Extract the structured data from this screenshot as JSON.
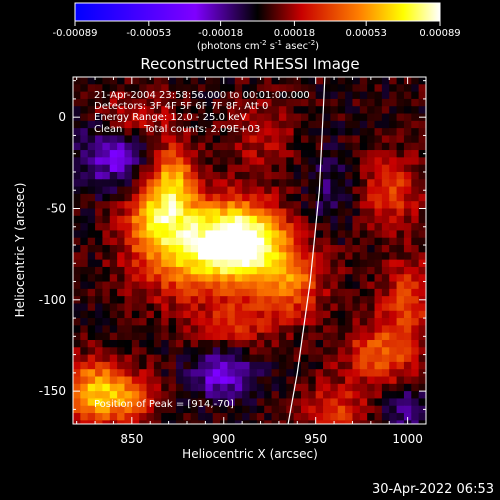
{
  "chart_data": {
    "type": "heatmap",
    "title": "Reconstructed RHESSI Image",
    "xlabel": "Heliocentric X (arcsec)",
    "ylabel": "Heliocentric Y (arcsec)",
    "xlim": [
      818,
      1010
    ],
    "ylim": [
      -168,
      22
    ],
    "xticks": [
      850,
      900,
      950,
      1000
    ],
    "yticks": [
      0,
      -50,
      -100,
      -150
    ],
    "colorbar": {
      "min": -0.00089,
      "max": 0.00089,
      "ticks": [
        "-0.00089",
        "-0.00053",
        "-0.00018",
        "0.00018",
        "0.00053",
        "0.00089"
      ],
      "unit_label": "(photons cm",
      "unit_exp1": "-2",
      "unit_mid1": " s",
      "unit_exp2": "-1",
      "unit_mid2": " asec",
      "unit_exp3": "-2",
      "unit_end": ")"
    },
    "peak": {
      "x": 914,
      "y": -70
    },
    "limb_points": [
      [
        955,
        22
      ],
      [
        952,
        -40
      ],
      [
        947,
        -90
      ],
      [
        940,
        -140
      ],
      [
        935,
        -168
      ]
    ],
    "sources": [
      {
        "x": 910,
        "y": -68,
        "amp": 0.00089,
        "sx": 16,
        "sy": 14
      },
      {
        "x": 880,
        "y": -72,
        "amp": 0.00055,
        "sx": 20,
        "sy": 18
      },
      {
        "x": 935,
        "y": -90,
        "amp": 0.0004,
        "sx": 14,
        "sy": 14
      },
      {
        "x": 872,
        "y": -35,
        "amp": 0.0005,
        "sx": 9,
        "sy": 14
      },
      {
        "x": 862,
        "y": -55,
        "amp": 0.00035,
        "sx": 12,
        "sy": 12
      },
      {
        "x": 830,
        "y": -150,
        "amp": 0.00055,
        "sx": 12,
        "sy": 12
      },
      {
        "x": 850,
        "y": -155,
        "amp": 0.0003,
        "sx": 10,
        "sy": 10
      },
      {
        "x": 905,
        "y": -115,
        "amp": 0.00025,
        "sx": 14,
        "sy": 10
      },
      {
        "x": 990,
        "y": -40,
        "amp": 0.0003,
        "sx": 12,
        "sy": 14
      },
      {
        "x": 985,
        "y": -130,
        "amp": 0.00035,
        "sx": 14,
        "sy": 12
      },
      {
        "x": 1000,
        "y": -100,
        "amp": 0.0003,
        "sx": 10,
        "sy": 16
      },
      {
        "x": 960,
        "y": -160,
        "amp": 0.00028,
        "sx": 12,
        "sy": 10
      },
      {
        "x": 850,
        "y": 0,
        "amp": 0.00025,
        "sx": 14,
        "sy": 10
      },
      {
        "x": 920,
        "y": -10,
        "amp": 0.0002,
        "sx": 12,
        "sy": 12
      },
      {
        "x": 900,
        "y": -140,
        "amp": -0.00035,
        "sx": 12,
        "sy": 10
      },
      {
        "x": 840,
        "y": -20,
        "amp": -0.0003,
        "sx": 14,
        "sy": 14
      },
      {
        "x": 960,
        "y": -40,
        "amp": -0.00015,
        "sx": 10,
        "sy": 14
      },
      {
        "x": 1000,
        "y": -160,
        "amp": -0.0002,
        "sx": 10,
        "sy": 10
      }
    ],
    "background": 4e-05
  },
  "info": {
    "line1": "21-Apr-2004 23:58:56.000 to 00:01:00.000",
    "line2": "Detectors: 3F 4F 5F 6F 7F 8F, Att 0",
    "line3": "Energy Range: 12.0 - 25.0 keV",
    "line4_label": "Clean",
    "line4_counts": "Total counts: 2.09E+03",
    "peak_label": "Position of Peak = [914,-70]"
  },
  "timestamp": "30-Apr-2022 06:53"
}
